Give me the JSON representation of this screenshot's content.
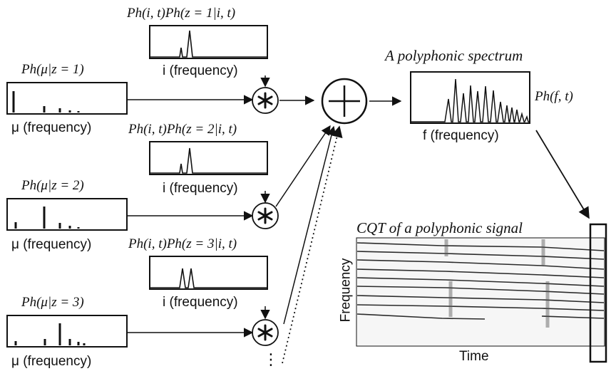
{
  "labels": {
    "freq_i": "i (frequency)",
    "freq_mu": "μ (frequency)",
    "freq_f": "f (frequency)",
    "time": "Time",
    "frequency": "Frequency",
    "poly_title": "A polyphonic spectrum",
    "cqt_title": "CQT of a polyphonic signal",
    "p_ft": "Ph(f, t)",
    "dots": "⋮"
  },
  "sources": [
    {
      "prior_label": "Ph(i, t)Ph(z = 1|i, t)",
      "kernel_label": "Ph(μ|z = 1)"
    },
    {
      "prior_label": "Ph(i, t)Ph(z = 2|i, t)",
      "kernel_label": "Ph(μ|z = 2)"
    },
    {
      "prior_label": "Ph(i, t)Ph(z = 3|i, t)",
      "kernel_label": "Ph(μ|z = 3)"
    }
  ],
  "symbols": {
    "convolve": "convolution-operator",
    "sum": "summation-operator"
  }
}
